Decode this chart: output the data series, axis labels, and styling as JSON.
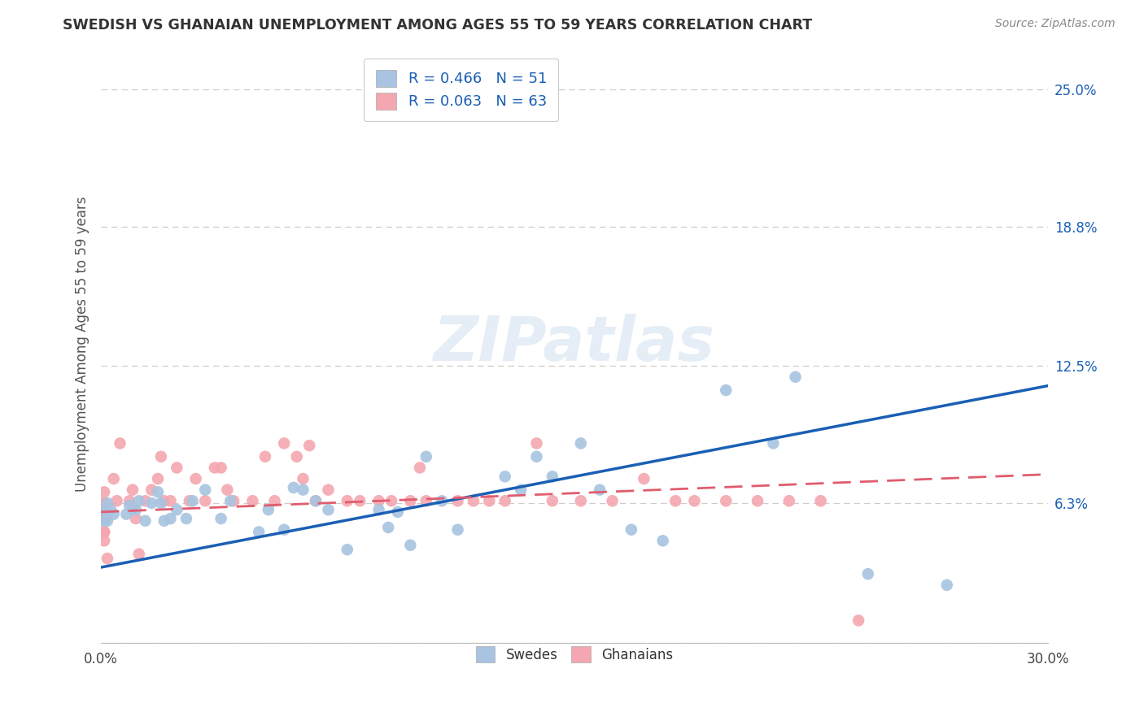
{
  "title": "SWEDISH VS GHANAIAN UNEMPLOYMENT AMONG AGES 55 TO 59 YEARS CORRELATION CHART",
  "source": "Source: ZipAtlas.com",
  "ylabel": "Unemployment Among Ages 55 to 59 years",
  "xlim": [
    0.0,
    0.3
  ],
  "ylim": [
    0.0,
    0.27
  ],
  "yticks": [
    0.0,
    0.063,
    0.125,
    0.188,
    0.25
  ],
  "ytick_labels": [
    "",
    "6.3%",
    "12.5%",
    "18.8%",
    "25.0%"
  ],
  "xticks": [
    0.0,
    0.05,
    0.1,
    0.15,
    0.2,
    0.25,
    0.3
  ],
  "xtick_labels": [
    "0.0%",
    "",
    "",
    "",
    "",
    "",
    "30.0%"
  ],
  "legend_r_swedes": "R = 0.466",
  "legend_n_swedes": "N = 51",
  "legend_r_ghanaians": "R = 0.063",
  "legend_n_ghanaians": "N = 63",
  "swedes_color": "#a8c4e0",
  "ghanaians_color": "#f4a7b0",
  "swedes_line_color": "#1a5fb4",
  "ghanaians_line_color": "#e05c6e",
  "background_color": "#ffffff",
  "swedes_x": [
    0.001,
    0.001,
    0.002,
    0.002,
    0.003,
    0.004,
    0.008,
    0.009,
    0.01,
    0.011,
    0.012,
    0.014,
    0.016,
    0.018,
    0.019,
    0.02,
    0.022,
    0.024,
    0.027,
    0.029,
    0.033,
    0.038,
    0.041,
    0.05,
    0.053,
    0.058,
    0.061,
    0.064,
    0.068,
    0.072,
    0.078,
    0.088,
    0.091,
    0.094,
    0.098,
    0.103,
    0.108,
    0.113,
    0.128,
    0.133,
    0.138,
    0.143,
    0.152,
    0.158,
    0.168,
    0.178,
    0.198,
    0.213,
    0.22,
    0.243,
    0.268
  ],
  "swedes_y": [
    0.055,
    0.06,
    0.063,
    0.055,
    0.06,
    0.058,
    0.058,
    0.062,
    0.06,
    0.06,
    0.064,
    0.055,
    0.063,
    0.068,
    0.063,
    0.055,
    0.056,
    0.06,
    0.056,
    0.064,
    0.069,
    0.056,
    0.064,
    0.05,
    0.06,
    0.051,
    0.07,
    0.069,
    0.064,
    0.06,
    0.042,
    0.06,
    0.052,
    0.059,
    0.044,
    0.084,
    0.064,
    0.051,
    0.075,
    0.069,
    0.084,
    0.075,
    0.09,
    0.069,
    0.051,
    0.046,
    0.114,
    0.09,
    0.12,
    0.031,
    0.026
  ],
  "ghanaians_x": [
    0.001,
    0.001,
    0.001,
    0.001,
    0.001,
    0.001,
    0.001,
    0.001,
    0.001,
    0.002,
    0.004,
    0.005,
    0.006,
    0.009,
    0.01,
    0.011,
    0.012,
    0.014,
    0.016,
    0.018,
    0.019,
    0.02,
    0.022,
    0.024,
    0.028,
    0.03,
    0.033,
    0.036,
    0.038,
    0.04,
    0.042,
    0.048,
    0.052,
    0.055,
    0.058,
    0.062,
    0.064,
    0.066,
    0.068,
    0.072,
    0.078,
    0.082,
    0.088,
    0.092,
    0.098,
    0.101,
    0.103,
    0.113,
    0.118,
    0.123,
    0.128,
    0.138,
    0.143,
    0.152,
    0.162,
    0.172,
    0.182,
    0.188,
    0.198,
    0.208,
    0.218,
    0.228,
    0.24
  ],
  "ghanaians_y": [
    0.063,
    0.068,
    0.063,
    0.055,
    0.059,
    0.055,
    0.05,
    0.05,
    0.046,
    0.038,
    0.074,
    0.064,
    0.09,
    0.064,
    0.069,
    0.056,
    0.04,
    0.064,
    0.069,
    0.074,
    0.084,
    0.064,
    0.064,
    0.079,
    0.064,
    0.074,
    0.064,
    0.079,
    0.079,
    0.069,
    0.064,
    0.064,
    0.084,
    0.064,
    0.09,
    0.084,
    0.074,
    0.089,
    0.064,
    0.069,
    0.064,
    0.064,
    0.064,
    0.064,
    0.064,
    0.079,
    0.064,
    0.064,
    0.064,
    0.064,
    0.064,
    0.09,
    0.064,
    0.064,
    0.064,
    0.074,
    0.064,
    0.064,
    0.064,
    0.064,
    0.064,
    0.064,
    0.01
  ],
  "swedes_line_x": [
    0.0,
    0.3
  ],
  "swedes_line_y": [
    0.034,
    0.116
  ],
  "ghanaians_line_x": [
    0.0,
    0.3
  ],
  "ghanaians_line_y": [
    0.059,
    0.076
  ]
}
